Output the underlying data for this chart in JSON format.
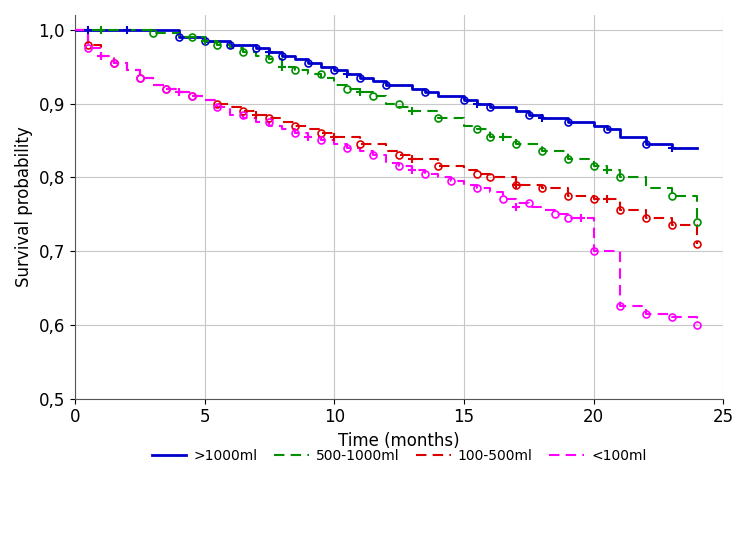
{
  "xlabel": "Time (months)",
  "ylabel": "Survival probability",
  "xlim": [
    0,
    25
  ],
  "ylim": [
    0.5,
    1.02
  ],
  "yticks": [
    0.5,
    0.6,
    0.7,
    0.8,
    0.9,
    1.0
  ],
  "ytick_labels": [
    "0,5",
    "0,6",
    "0,7",
    "0,8",
    "0,9",
    "1,0"
  ],
  "xticks": [
    0,
    5,
    10,
    15,
    20,
    25
  ],
  "background_color": "#ffffff",
  "grid_color": "#c8c8c8",
  "colors": [
    "#0000cc",
    "#009000",
    "#dd0000",
    "#ff00ff"
  ],
  "labels": [
    ">1000ml",
    "500-1000ml",
    "100-500ml",
    "<100ml"
  ],
  "figsize": [
    7.49,
    5.45
  ],
  "dpi": 100,
  "t1": [
    0,
    3,
    4,
    5,
    6,
    7,
    7.5,
    8,
    8.5,
    9,
    9.5,
    10,
    10.5,
    11,
    11.5,
    12,
    13,
    13.5,
    14,
    15,
    15.5,
    16,
    17,
    17.5,
    18,
    19,
    20,
    20.5,
    21,
    22,
    23,
    24
  ],
  "s1": [
    1.0,
    1.0,
    0.99,
    0.985,
    0.98,
    0.975,
    0.97,
    0.965,
    0.96,
    0.955,
    0.95,
    0.945,
    0.94,
    0.935,
    0.93,
    0.925,
    0.92,
    0.915,
    0.91,
    0.905,
    0.9,
    0.895,
    0.89,
    0.885,
    0.88,
    0.875,
    0.87,
    0.865,
    0.855,
    0.845,
    0.84,
    0.84
  ],
  "ev1_t": [
    4,
    5,
    6,
    7,
    8,
    9,
    10,
    11,
    12,
    13.5,
    15,
    16,
    17.5,
    19,
    20.5,
    22
  ],
  "ev1_s": [
    0.99,
    0.985,
    0.98,
    0.975,
    0.965,
    0.955,
    0.945,
    0.935,
    0.925,
    0.915,
    0.905,
    0.895,
    0.885,
    0.875,
    0.865,
    0.845
  ],
  "ce1_t": [
    0.5,
    2,
    7.5,
    10.5,
    15.5,
    18,
    23
  ],
  "ce1_s": [
    1.0,
    1.0,
    0.97,
    0.94,
    0.9,
    0.88,
    0.84
  ],
  "t2": [
    0,
    2,
    3,
    4,
    5,
    5.5,
    6,
    6.5,
    7,
    7.5,
    8,
    8.5,
    9,
    9.5,
    10,
    10.5,
    11,
    11.5,
    12,
    12.5,
    13,
    14,
    15,
    15.5,
    16,
    17,
    18,
    19,
    20,
    20.5,
    21,
    22,
    23,
    24
  ],
  "s2": [
    1.0,
    1.0,
    0.995,
    0.99,
    0.985,
    0.98,
    0.975,
    0.97,
    0.965,
    0.96,
    0.95,
    0.945,
    0.94,
    0.935,
    0.925,
    0.92,
    0.915,
    0.91,
    0.9,
    0.895,
    0.89,
    0.88,
    0.87,
    0.865,
    0.855,
    0.845,
    0.835,
    0.825,
    0.815,
    0.81,
    0.8,
    0.785,
    0.775,
    0.74
  ],
  "ev2_t": [
    3,
    4.5,
    5.5,
    6.5,
    7.5,
    8.5,
    9.5,
    10.5,
    11.5,
    12.5,
    14,
    15.5,
    16,
    17,
    18,
    19,
    20,
    21,
    23,
    24
  ],
  "ev2_s": [
    0.995,
    0.99,
    0.98,
    0.97,
    0.96,
    0.945,
    0.94,
    0.92,
    0.91,
    0.9,
    0.88,
    0.865,
    0.855,
    0.845,
    0.835,
    0.825,
    0.815,
    0.8,
    0.775,
    0.74
  ],
  "ce2_t": [
    1,
    5,
    8,
    11,
    13,
    16.5,
    20.5
  ],
  "ce2_s": [
    1.0,
    0.985,
    0.95,
    0.915,
    0.89,
    0.855,
    0.81
  ],
  "t3": [
    0,
    0.5,
    1,
    1.5,
    2,
    2.5,
    3,
    3.5,
    4,
    4.5,
    5,
    5.5,
    6,
    6.5,
    7,
    7.5,
    8,
    8.5,
    9,
    9.5,
    10,
    11,
    12,
    12.5,
    13,
    14,
    15,
    15.5,
    16,
    17,
    18,
    19,
    20,
    21,
    22,
    23,
    24
  ],
  "s3": [
    1.0,
    0.98,
    0.965,
    0.955,
    0.945,
    0.935,
    0.925,
    0.92,
    0.915,
    0.91,
    0.905,
    0.9,
    0.895,
    0.89,
    0.885,
    0.88,
    0.875,
    0.87,
    0.865,
    0.86,
    0.855,
    0.845,
    0.835,
    0.83,
    0.825,
    0.815,
    0.81,
    0.805,
    0.8,
    0.79,
    0.785,
    0.775,
    0.77,
    0.755,
    0.745,
    0.735,
    0.71
  ],
  "ev3_t": [
    0.5,
    1.5,
    2.5,
    3.5,
    4.5,
    5.5,
    6.5,
    7.5,
    8.5,
    9.5,
    11,
    12.5,
    14,
    15.5,
    16,
    17,
    18,
    19,
    20,
    21,
    22,
    23,
    24
  ],
  "ev3_s": [
    0.98,
    0.955,
    0.935,
    0.92,
    0.91,
    0.9,
    0.89,
    0.88,
    0.87,
    0.86,
    0.845,
    0.83,
    0.815,
    0.805,
    0.8,
    0.79,
    0.785,
    0.775,
    0.77,
    0.755,
    0.745,
    0.735,
    0.71
  ],
  "ce3_t": [
    1,
    4,
    7,
    10,
    13,
    17,
    20.5
  ],
  "ce3_s": [
    0.965,
    0.915,
    0.885,
    0.855,
    0.825,
    0.79,
    0.77
  ],
  "t4": [
    0,
    0.5,
    1,
    1.5,
    2,
    2.5,
    3,
    3.5,
    4,
    4.5,
    5,
    5.5,
    6,
    6.5,
    7,
    7.5,
    8,
    8.5,
    9,
    9.5,
    10,
    10.5,
    11,
    11.5,
    12,
    12.5,
    13,
    13.5,
    14,
    14.5,
    15,
    15.5,
    16,
    16.5,
    17,
    17.5,
    18,
    18.5,
    19,
    20,
    21,
    22,
    23,
    24
  ],
  "s4": [
    1.0,
    0.975,
    0.965,
    0.955,
    0.945,
    0.935,
    0.925,
    0.92,
    0.915,
    0.91,
    0.905,
    0.895,
    0.885,
    0.88,
    0.875,
    0.87,
    0.865,
    0.86,
    0.855,
    0.85,
    0.845,
    0.84,
    0.835,
    0.83,
    0.82,
    0.815,
    0.81,
    0.805,
    0.8,
    0.795,
    0.79,
    0.785,
    0.78,
    0.77,
    0.765,
    0.76,
    0.755,
    0.75,
    0.745,
    0.7,
    0.625,
    0.615,
    0.61,
    0.6
  ],
  "ev4_t": [
    0.5,
    1.5,
    2.5,
    3.5,
    4.5,
    5.5,
    6.5,
    7.5,
    8.5,
    9.5,
    10.5,
    11.5,
    12.5,
    13.5,
    14.5,
    15.5,
    16.5,
    17.5,
    18.5,
    19,
    20,
    21,
    22,
    23,
    24
  ],
  "ev4_s": [
    0.975,
    0.955,
    0.935,
    0.92,
    0.91,
    0.895,
    0.885,
    0.875,
    0.86,
    0.85,
    0.84,
    0.83,
    0.815,
    0.805,
    0.795,
    0.785,
    0.77,
    0.765,
    0.75,
    0.745,
    0.7,
    0.625,
    0.615,
    0.61,
    0.6
  ],
  "ce4_t": [
    1,
    4,
    9,
    13,
    17,
    19.5
  ],
  "ce4_s": [
    0.965,
    0.915,
    0.855,
    0.81,
    0.76,
    0.745
  ]
}
